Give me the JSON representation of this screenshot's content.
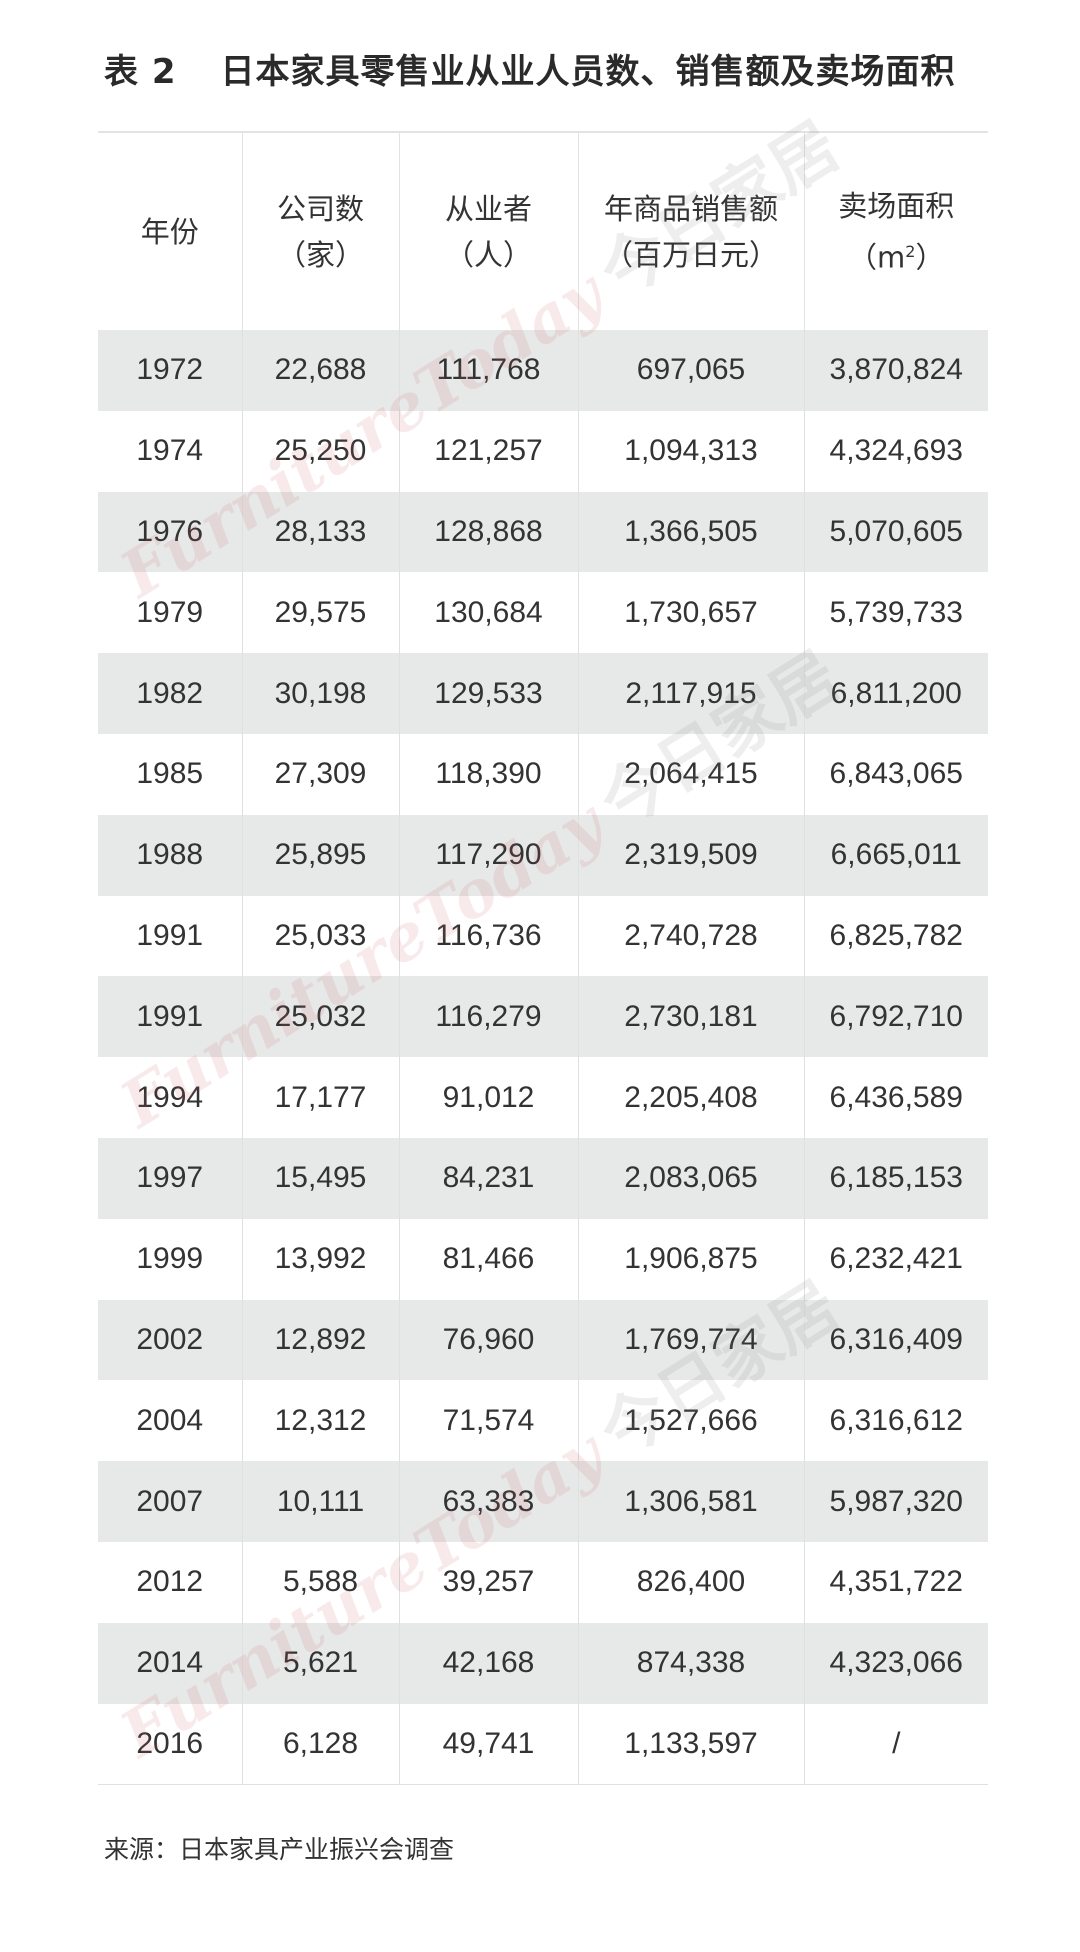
{
  "title": {
    "number": "表 2",
    "text": "日本家具零售业从业人员数、销售额及卖场面积"
  },
  "headers": [
    {
      "line1": "年份",
      "line2": ""
    },
    {
      "line1": "公司数",
      "line2": "（家）"
    },
    {
      "line1": "从业者",
      "line2": "（人）"
    },
    {
      "line1": "年商品销售额",
      "line2": "（百万日元）"
    },
    {
      "line1": "卖场面积",
      "line2": "（m",
      "sup": "2",
      "close": "）"
    }
  ],
  "rows": [
    [
      "1972",
      "22,688",
      "111,768",
      "697,065",
      "3,870,824"
    ],
    [
      "1974",
      "25,250",
      "121,257",
      "1,094,313",
      "4,324,693"
    ],
    [
      "1976",
      "28,133",
      "128,868",
      "1,366,505",
      "5,070,605"
    ],
    [
      "1979",
      "29,575",
      "130,684",
      "1,730,657",
      "5,739,733"
    ],
    [
      "1982",
      "30,198",
      "129,533",
      "2,117,915",
      "6,811,200"
    ],
    [
      "1985",
      "27,309",
      "118,390",
      "2,064,415",
      "6,843,065"
    ],
    [
      "1988",
      "25,895",
      "117,290",
      "2,319,509",
      "6,665,011"
    ],
    [
      "1991",
      "25,033",
      "116,736",
      "2,740,728",
      "6,825,782"
    ],
    [
      "1991",
      "25,032",
      "116,279",
      "2,730,181",
      "6,792,710"
    ],
    [
      "1994",
      "17,177",
      "91,012",
      "2,205,408",
      "6,436,589"
    ],
    [
      "1997",
      "15,495",
      "84,231",
      "2,083,065",
      "6,185,153"
    ],
    [
      "1999",
      "13,992",
      "81,466",
      "1,906,875",
      "6,232,421"
    ],
    [
      "2002",
      "12,892",
      "76,960",
      "1,769,774",
      "6,316,409"
    ],
    [
      "2004",
      "12,312",
      "71,574",
      "1,527,666",
      "6,316,612"
    ],
    [
      "2007",
      "10,111",
      "63,383",
      "1,306,581",
      "5,987,320"
    ],
    [
      "2012",
      "5,588",
      "39,257",
      "826,400",
      "4,351,722"
    ],
    [
      "2014",
      "5,621",
      "42,168",
      "874,338",
      "4,323,066"
    ],
    [
      "2016",
      "6,128",
      "49,741",
      "1,133,597",
      "/"
    ]
  ],
  "source": "来源：日本家具产业振兴会调查",
  "watermark": {
    "en": "FurnitureToday",
    "cn": "今日家居"
  }
}
